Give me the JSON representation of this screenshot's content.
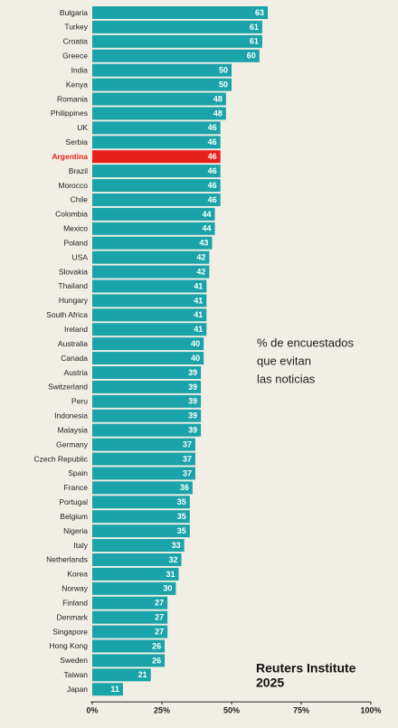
{
  "chart_data": {
    "type": "hbar",
    "categories": [
      "Bulgaria",
      "Turkey",
      "Croatia",
      "Greece",
      "India",
      "Kenya",
      "Romania",
      "Philippines",
      "UK",
      "Serbia",
      "Argentina",
      "Brazil",
      "Morocco",
      "Chile",
      "Colombia",
      "Mexico",
      "Poland",
      "USA",
      "Slovakia",
      "Thailand",
      "Hungary",
      "South Africa",
      "Ireland",
      "Australia",
      "Canada",
      "Austria",
      "Switzerland",
      "Peru",
      "Indonesia",
      "Malaysia",
      "Germany",
      "Czech Republic",
      "Spain",
      "France",
      "Portugal",
      "Belgium",
      "Nigeria",
      "Italy",
      "Netherlands",
      "Korea",
      "Norway",
      "Finland",
      "Denmark",
      "Singapore",
      "Hong Kong",
      "Sweden",
      "Taiwan",
      "Japan"
    ],
    "values": [
      63,
      61,
      61,
      60,
      50,
      50,
      48,
      48,
      46,
      46,
      46,
      46,
      46,
      46,
      44,
      44,
      43,
      42,
      42,
      41,
      41,
      41,
      41,
      40,
      40,
      39,
      39,
      39,
      39,
      39,
      37,
      37,
      37,
      36,
      35,
      35,
      35,
      33,
      32,
      31,
      30,
      27,
      27,
      27,
      26,
      26,
      21,
      11
    ],
    "color": "#1aa3a8",
    "colors": [
      "#1aa3a8",
      "#1aa3a8",
      "#1aa3a8",
      "#1aa3a8",
      "#1aa3a8",
      "#1aa3a8",
      "#1aa3a8",
      "#1aa3a8",
      "#1aa3a8",
      "#1aa3a8",
      "#e8201c",
      "#1aa3a8",
      "#1aa3a8",
      "#1aa3a8",
      "#1aa3a8",
      "#1aa3a8",
      "#1aa3a8",
      "#1aa3a8",
      "#1aa3a8",
      "#1aa3a8",
      "#1aa3a8",
      "#1aa3a8",
      "#1aa3a8",
      "#1aa3a8",
      "#1aa3a8",
      "#1aa3a8",
      "#1aa3a8",
      "#1aa3a8",
      "#1aa3a8",
      "#1aa3a8",
      "#1aa3a8",
      "#1aa3a8",
      "#1aa3a8",
      "#1aa3a8",
      "#1aa3a8",
      "#1aa3a8",
      "#1aa3a8",
      "#1aa3a8",
      "#1aa3a8",
      "#1aa3a8",
      "#1aa3a8",
      "#1aa3a8",
      "#1aa3a8",
      "#1aa3a8",
      "#1aa3a8",
      "#1aa3a8",
      "#1aa3a8",
      "#1aa3a8"
    ],
    "xlim": [
      0,
      100
    ],
    "xticks": [
      {
        "value": 0,
        "label": "0%"
      },
      {
        "value": 25,
        "label": "25%"
      },
      {
        "value": 50,
        "label": "50%"
      },
      {
        "value": 75,
        "label": "75%"
      },
      {
        "value": 100,
        "label": "100%"
      }
    ],
    "annotation": [
      "% de encuestados",
      "que evitan",
      "las noticias"
    ],
    "source": [
      "Reuters Institute",
      "2025"
    ]
  }
}
